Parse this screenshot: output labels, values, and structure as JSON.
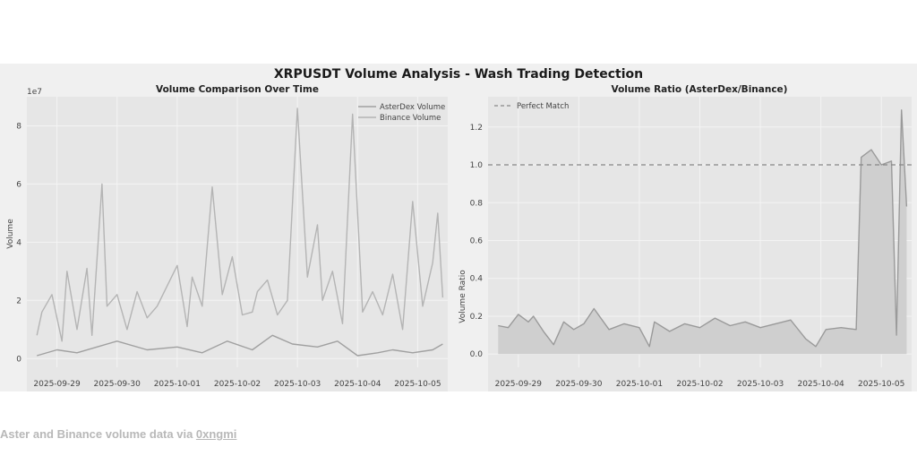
{
  "figure": {
    "suptitle": "XRPUSDT Volume Analysis - Wash Trading Detection"
  },
  "caption": {
    "text": "Aster and Binance volume data via ",
    "link": "0xngmi"
  },
  "chart_data": [
    {
      "type": "line",
      "title": "Volume Comparison Over Time",
      "xlabel": "",
      "ylabel": "Volume",
      "offset_text": "1e7",
      "yticks": [
        0,
        2,
        4,
        6,
        8
      ],
      "ylim": [
        -0.3,
        9.0
      ],
      "xlim": [
        "2025-09-28 12:00",
        "2025-10-05 12:00"
      ],
      "xticks": [
        "2025-09-29",
        "2025-09-30",
        "2025-10-01",
        "2025-10-02",
        "2025-10-03",
        "2025-10-04",
        "2025-10-05"
      ],
      "legend": {
        "position": "top-right",
        "entries": [
          "AsterDex Volume",
          "Binance Volume"
        ]
      },
      "grid": true,
      "colors": {
        "aster": "#a0a0a0",
        "binance": "#b4b4b4"
      },
      "series": [
        {
          "name": "AsterDex Volume",
          "x": [
            "2025-09-28 16:00",
            "2025-09-29 00:00",
            "2025-09-29 08:00",
            "2025-09-29 16:00",
            "2025-09-30 00:00",
            "2025-09-30 12:00",
            "2025-10-01 00:00",
            "2025-10-01 10:00",
            "2025-10-01 20:00",
            "2025-10-02 06:00",
            "2025-10-02 14:00",
            "2025-10-02 22:00",
            "2025-10-03 08:00",
            "2025-10-03 16:00",
            "2025-10-04 00:00",
            "2025-10-04 08:00",
            "2025-10-04 14:00",
            "2025-10-04 22:00",
            "2025-10-05 06:00",
            "2025-10-05 10:00"
          ],
          "values": [
            0.1,
            0.3,
            0.2,
            0.4,
            0.6,
            0.3,
            0.4,
            0.2,
            0.6,
            0.3,
            0.8,
            0.5,
            0.4,
            0.6,
            0.1,
            0.2,
            0.3,
            0.2,
            0.3,
            0.5
          ]
        },
        {
          "name": "Binance Volume",
          "x": [
            "2025-09-28 16:00",
            "2025-09-28 18:00",
            "2025-09-28 22:00",
            "2025-09-29 02:00",
            "2025-09-29 04:00",
            "2025-09-29 08:00",
            "2025-09-29 12:00",
            "2025-09-29 14:00",
            "2025-09-29 18:00",
            "2025-09-29 20:00",
            "2025-09-30 00:00",
            "2025-09-30 04:00",
            "2025-09-30 08:00",
            "2025-09-30 12:00",
            "2025-09-30 16:00",
            "2025-09-30 20:00",
            "2025-10-01 00:00",
            "2025-10-01 04:00",
            "2025-10-01 06:00",
            "2025-10-01 10:00",
            "2025-10-01 14:00",
            "2025-10-01 18:00",
            "2025-10-01 22:00",
            "2025-10-02 02:00",
            "2025-10-02 06:00",
            "2025-10-02 08:00",
            "2025-10-02 12:00",
            "2025-10-02 16:00",
            "2025-10-02 20:00",
            "2025-10-03 00:00",
            "2025-10-03 04:00",
            "2025-10-03 08:00",
            "2025-10-03 10:00",
            "2025-10-03 14:00",
            "2025-10-03 18:00",
            "2025-10-03 22:00",
            "2025-10-04 02:00",
            "2025-10-04 06:00",
            "2025-10-04 10:00",
            "2025-10-04 14:00",
            "2025-10-04 18:00",
            "2025-10-04 22:00",
            "2025-10-05 02:00",
            "2025-10-05 06:00",
            "2025-10-05 08:00",
            "2025-10-05 10:00"
          ],
          "values": [
            0.8,
            1.6,
            2.2,
            0.6,
            3.0,
            1.0,
            3.1,
            0.8,
            6.0,
            1.8,
            2.2,
            1.0,
            2.3,
            1.4,
            1.8,
            2.5,
            3.2,
            1.1,
            2.8,
            1.8,
            5.9,
            2.2,
            3.5,
            1.5,
            1.6,
            2.3,
            2.7,
            1.5,
            2.0,
            8.6,
            2.8,
            4.6,
            2.0,
            3.0,
            1.2,
            8.4,
            1.6,
            2.3,
            1.5,
            2.9,
            1.0,
            5.4,
            1.8,
            3.3,
            5.0,
            2.1
          ]
        }
      ]
    },
    {
      "type": "area",
      "title": "Volume Ratio (AsterDex/Binance)",
      "xlabel": "",
      "ylabel": "Volume Ratio",
      "yticks": [
        0.0,
        0.2,
        0.4,
        0.6,
        0.8,
        1.0,
        1.2
      ],
      "ylim": [
        -0.07,
        1.36
      ],
      "xlim": [
        "2025-09-28 12:00",
        "2025-10-05 12:00"
      ],
      "xticks": [
        "2025-09-29",
        "2025-09-30",
        "2025-10-01",
        "2025-10-02",
        "2025-10-03",
        "2025-10-04",
        "2025-10-05"
      ],
      "legend": {
        "position": "top-left",
        "entries": [
          "Perfect Match"
        ]
      },
      "reference_line": {
        "y": 1.0,
        "style": "dashed",
        "label": "Perfect Match"
      },
      "grid": true,
      "colors": {
        "ratio_line": "#9a9a9a",
        "ratio_fill": "#cfcfcf",
        "reference": "#888888"
      },
      "series": [
        {
          "name": "",
          "x": [
            "2025-09-28 16:00",
            "2025-09-28 20:00",
            "2025-09-29 00:00",
            "2025-09-29 04:00",
            "2025-09-29 06:00",
            "2025-09-29 10:00",
            "2025-09-29 14:00",
            "2025-09-29 18:00",
            "2025-09-29 22:00",
            "2025-09-30 02:00",
            "2025-09-30 06:00",
            "2025-09-30 12:00",
            "2025-09-30 18:00",
            "2025-10-01 00:00",
            "2025-10-01 04:00",
            "2025-10-01 06:00",
            "2025-10-01 12:00",
            "2025-10-01 18:00",
            "2025-10-02 00:00",
            "2025-10-02 06:00",
            "2025-10-02 12:00",
            "2025-10-02 18:00",
            "2025-10-03 00:00",
            "2025-10-03 06:00",
            "2025-10-03 12:00",
            "2025-10-03 18:00",
            "2025-10-03 22:00",
            "2025-10-04 02:00",
            "2025-10-04 08:00",
            "2025-10-04 14:00",
            "2025-10-04 16:00",
            "2025-10-04 20:00",
            "2025-10-05 00:00",
            "2025-10-05 04:00",
            "2025-10-05 06:00",
            "2025-10-05 08:00",
            "2025-10-05 10:00"
          ],
          "values": [
            0.15,
            0.14,
            0.21,
            0.17,
            0.2,
            0.12,
            0.05,
            0.17,
            0.13,
            0.16,
            0.24,
            0.13,
            0.16,
            0.14,
            0.04,
            0.17,
            0.12,
            0.16,
            0.14,
            0.19,
            0.15,
            0.17,
            0.14,
            0.16,
            0.18,
            0.08,
            0.04,
            0.13,
            0.14,
            0.13,
            1.04,
            1.08,
            1.0,
            1.02,
            0.1,
            1.29,
            0.78
          ]
        }
      ]
    }
  ]
}
